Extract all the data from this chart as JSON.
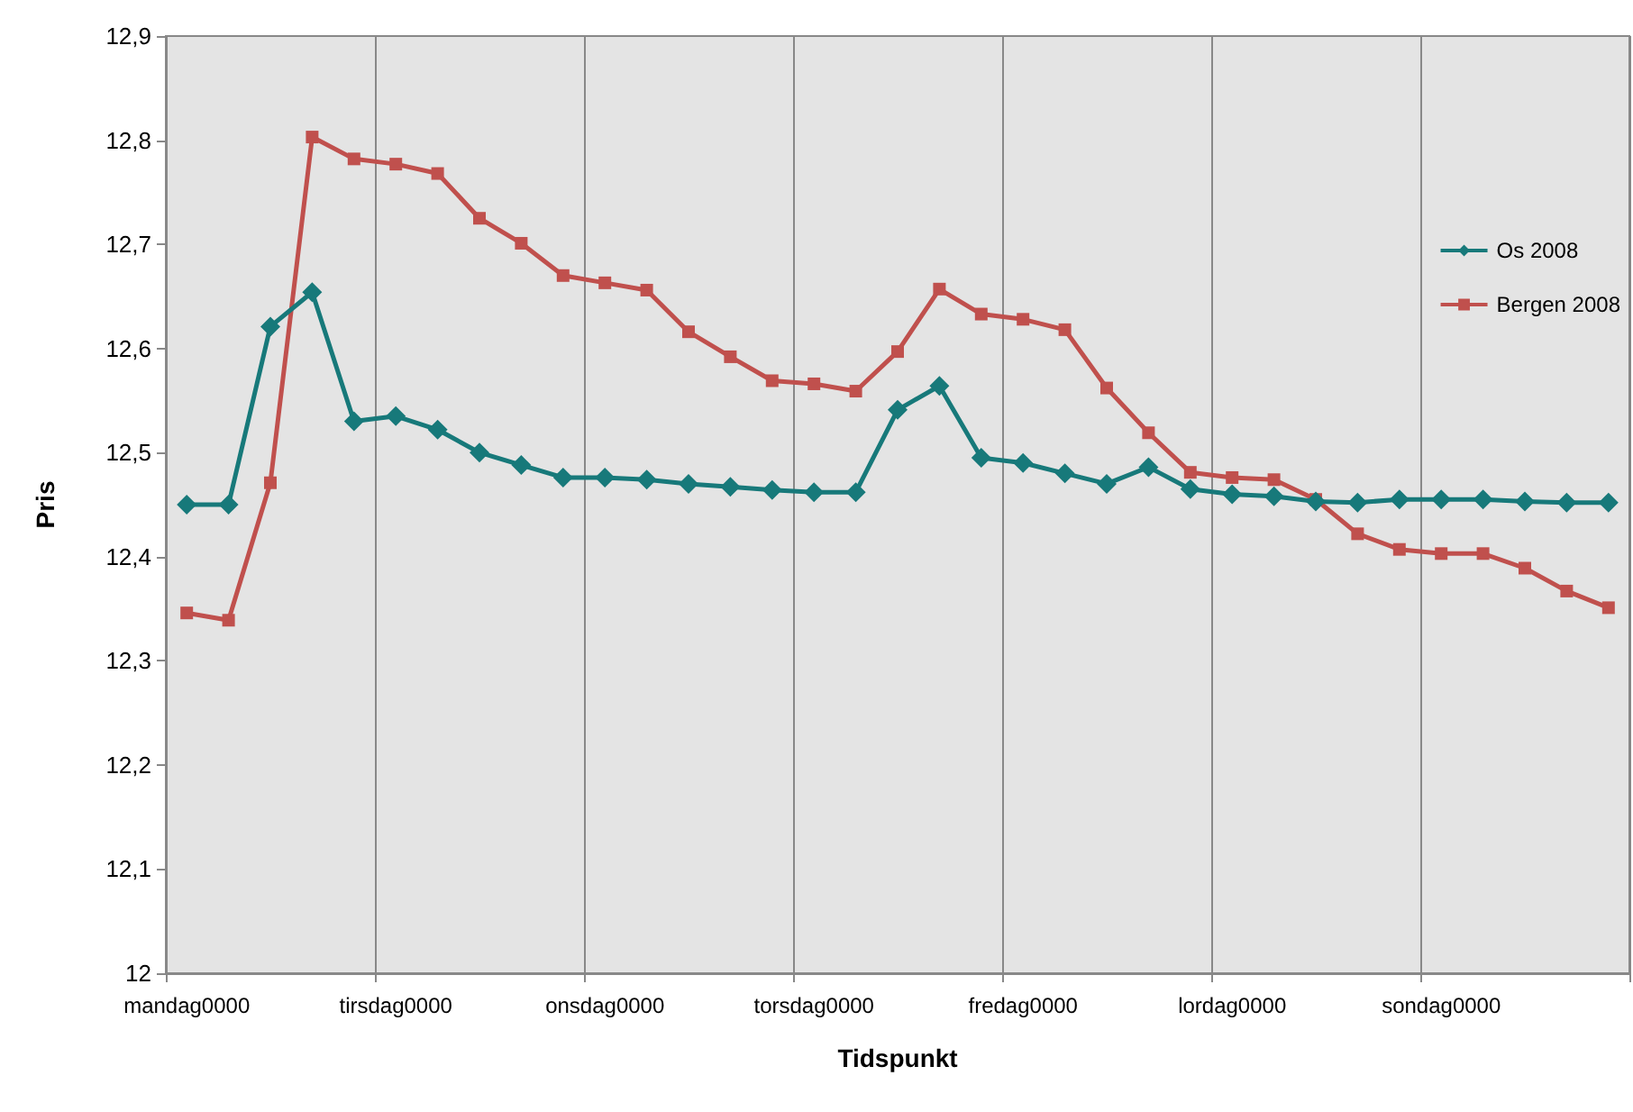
{
  "chart_data": {
    "type": "line",
    "xlabel": "Tidspunkt",
    "ylabel": "Pris",
    "categories": [
      "mandag0000",
      null,
      null,
      null,
      null,
      "tirsdag0000",
      null,
      null,
      null,
      null,
      "onsdag0000",
      null,
      null,
      null,
      null,
      "torsdag0000",
      null,
      null,
      null,
      null,
      "fredag0000",
      null,
      null,
      null,
      null,
      "lordag0000",
      null,
      null,
      null,
      null,
      "sondag0000",
      null,
      null,
      null,
      null
    ],
    "series": [
      {
        "name": "Os 2008",
        "color": "#17797a",
        "marker": "diamond",
        "values": [
          12.45,
          12.45,
          12.621,
          12.654,
          12.53,
          12.535,
          12.522,
          12.5,
          12.488,
          12.476,
          12.476,
          12.474,
          12.47,
          12.467,
          12.464,
          12.462,
          12.462,
          12.541,
          12.564,
          12.495,
          12.49,
          12.48,
          12.47,
          12.486,
          12.465,
          12.46,
          12.458,
          12.453,
          12.452,
          12.455,
          12.455,
          12.455,
          12.453,
          12.452,
          12.452
        ]
      },
      {
        "name": "Bergen 2008",
        "color": "#c0504d",
        "marker": "square",
        "values": [
          12.346,
          12.339,
          12.471,
          12.803,
          12.782,
          12.777,
          12.768,
          12.725,
          12.701,
          12.67,
          12.663,
          12.656,
          12.616,
          12.592,
          12.569,
          12.566,
          12.559,
          12.597,
          12.657,
          12.633,
          12.628,
          12.618,
          12.562,
          12.519,
          12.481,
          12.476,
          12.474,
          12.455,
          12.422,
          12.407,
          12.403,
          12.403,
          12.389,
          12.367,
          12.351
        ]
      }
    ],
    "ylim": [
      12,
      12.9
    ],
    "yticks": [
      {
        "value": 12,
        "label": "12"
      },
      {
        "value": 12.1,
        "label": "12,1"
      },
      {
        "value": 12.2,
        "label": "12,2"
      },
      {
        "value": 12.3,
        "label": "12,3"
      },
      {
        "value": 12.4,
        "label": "12,4"
      },
      {
        "value": 12.5,
        "label": "12,5"
      },
      {
        "value": 12.6,
        "label": "12,6"
      },
      {
        "value": 12.7,
        "label": "12,7"
      },
      {
        "value": 12.8,
        "label": "12,8"
      },
      {
        "value": 12.9,
        "label": "12,9"
      }
    ],
    "grid": "x",
    "legend": "right",
    "line_style": "solid"
  }
}
